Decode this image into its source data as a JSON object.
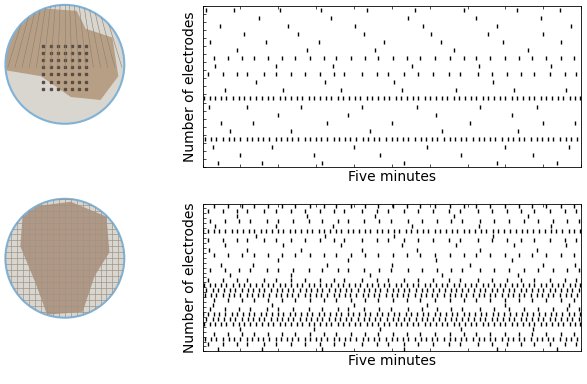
{
  "chart_data": [
    {
      "type": "raster",
      "xlabel": "Five minutes",
      "ylabel": "Number of electrodes",
      "xlim": [
        0,
        300
      ],
      "ylim": [
        0,
        20
      ],
      "xticks": [
        0,
        30,
        60,
        90,
        120,
        150,
        180,
        210,
        240,
        270,
        300
      ],
      "yticks": [
        0,
        1,
        2,
        3,
        4,
        5,
        6,
        7,
        8,
        9,
        10,
        11,
        12,
        13,
        14,
        15,
        16,
        17,
        18,
        19,
        20
      ],
      "tick_labels": false,
      "color": "#000000",
      "marker": "vline",
      "rows": [
        [
          12,
          47,
          95,
          160,
          233,
          281
        ],
        [
          30,
          88,
          141,
          205,
          262
        ],
        [
          8,
          55,
          120,
          178,
          240,
          290
        ],
        [
          2,
          7,
          11,
          16,
          21,
          25,
          30,
          35,
          39,
          44,
          48,
          53,
          58,
          62,
          67,
          71,
          76,
          81,
          85,
          90,
          94,
          99,
          104,
          108,
          113,
          117,
          122,
          127,
          131,
          136,
          140,
          145,
          150,
          154,
          159,
          163,
          168,
          173,
          177,
          182,
          186,
          191,
          196,
          200,
          205,
          209,
          214,
          219,
          223,
          228,
          232,
          237,
          242,
          246,
          251,
          255,
          260,
          265,
          269,
          274,
          278,
          283,
          288,
          292,
          297
        ],
        [
          22,
          70,
          133,
          190,
          250
        ],
        [
          15,
          40,
          99,
          150,
          212,
          270,
          295
        ],
        [
          60,
          115,
          185,
          245
        ],
        [
          5,
          35,
          78,
          126,
          170,
          220,
          265
        ],
        [
          1,
          6,
          10,
          15,
          19,
          24,
          29,
          33,
          38,
          42,
          47,
          52,
          56,
          61,
          65,
          70,
          75,
          79,
          84,
          88,
          93,
          98,
          102,
          107,
          111,
          116,
          121,
          125,
          130,
          134,
          139,
          144,
          148,
          153,
          157,
          162,
          167,
          171,
          176,
          180,
          185,
          190,
          194,
          199,
          203,
          208,
          213,
          217,
          222,
          226,
          231,
          236,
          240,
          245,
          249,
          254,
          259,
          263,
          268,
          272,
          277,
          282,
          286,
          291,
          295,
          299
        ],
        [
          18,
          64,
          110,
          158,
          201,
          247,
          288
        ],
        [
          42,
          97,
          152,
          230
        ],
        [
          4,
          16,
          27,
          35,
          49,
          58,
          70,
          81,
          93,
          104,
          112,
          126,
          138,
          147,
          160,
          171,
          183,
          195,
          204,
          218,
          229,
          241,
          252,
          263,
          275,
          287,
          296
        ],
        [
          10,
          58,
          103,
          166,
          219,
          276
        ],
        [
          9,
          20,
          31,
          41,
          52,
          63,
          73,
          85,
          96,
          106,
          118,
          129,
          139,
          151,
          162,
          172,
          184,
          196,
          207,
          217,
          228,
          240,
          251,
          261,
          272,
          284,
          294
        ],
        [
          27,
          83,
          137,
          199,
          258
        ],
        [
          6,
          50,
          92,
          144,
          189,
          238,
          284
        ],
        [
          33,
          76,
          128,
          181,
          226,
          270
        ],
        [
          14,
          68,
          121,
          175,
          233,
          292
        ],
        [
          45,
          102,
          163,
          217,
          268
        ],
        [
          3,
          25,
          61,
          94,
          130,
          168,
          207,
          249,
          283
        ]
      ]
    },
    {
      "type": "raster",
      "xlabel": "Five minutes",
      "ylabel": "Number of electrodes",
      "xlim": [
        0,
        300
      ],
      "ylim": [
        0,
        30
      ],
      "xticks": [
        0,
        30,
        60,
        90,
        120,
        150,
        180,
        210,
        240,
        270,
        300
      ],
      "yticks": [
        0,
        1,
        2,
        3,
        4,
        5,
        6,
        7,
        8,
        9,
        10,
        11,
        12,
        13,
        14,
        15,
        16,
        17,
        18,
        19,
        20,
        21,
        22,
        23,
        24,
        25,
        26,
        27,
        28,
        29,
        30
      ],
      "tick_labels": false,
      "color": "#000000",
      "marker": "vline",
      "rows": [
        [
          12,
          47,
          95,
          160,
          233,
          281
        ],
        [
          4,
          16,
          27,
          35,
          49,
          58,
          70,
          81,
          93,
          104,
          112,
          126,
          138,
          147,
          160,
          171,
          183,
          195,
          204,
          218,
          229,
          241,
          252,
          263,
          275,
          287,
          296
        ],
        [
          2,
          7,
          11,
          16,
          21,
          25,
          30,
          35,
          39,
          44,
          48,
          53,
          58,
          62,
          67,
          71,
          76,
          81,
          85,
          90,
          94,
          99,
          104,
          108,
          113,
          117,
          122,
          127,
          131,
          136,
          140,
          145,
          150,
          154,
          159,
          163,
          168,
          173,
          177,
          182,
          186,
          191,
          196,
          200,
          205,
          209,
          214,
          219,
          223,
          228,
          232,
          237,
          242,
          246,
          251,
          255,
          260,
          265,
          269,
          274,
          278,
          283,
          288,
          292,
          297
        ],
        [
          9,
          20,
          31,
          41,
          52,
          63,
          73,
          85,
          96,
          106,
          118,
          129,
          139,
          151,
          162,
          172,
          184,
          196,
          207,
          217,
          228,
          240,
          251,
          261,
          272,
          284,
          294
        ],
        [
          30,
          88,
          141,
          205,
          262
        ],
        [
          1,
          6,
          10,
          15,
          19,
          24,
          29,
          33,
          38,
          42,
          47,
          52,
          56,
          61,
          65,
          70,
          75,
          79,
          84,
          88,
          93,
          98,
          102,
          107,
          111,
          116,
          121,
          125,
          130,
          134,
          139,
          144,
          148,
          153,
          157,
          162,
          167,
          171,
          176,
          180,
          185,
          190,
          194,
          199,
          203,
          208,
          213,
          217,
          222,
          226,
          231,
          236,
          240,
          245,
          249,
          254,
          259,
          263,
          268,
          272,
          277,
          282,
          286,
          291,
          295,
          299
        ],
        [
          3,
          8,
          12,
          17,
          22,
          26,
          31,
          36,
          40,
          45,
          49,
          54,
          59,
          63,
          68,
          72,
          77,
          82,
          86,
          91,
          95,
          100,
          105,
          109,
          114,
          118,
          123,
          128,
          132,
          137,
          141,
          146,
          151,
          155,
          160,
          164,
          169,
          174,
          178,
          183,
          187,
          192,
          197,
          201,
          206,
          210,
          215,
          220,
          224,
          229,
          233,
          238,
          243,
          247,
          252,
          256,
          261,
          266,
          270,
          275,
          279,
          284,
          289,
          293,
          298
        ],
        [
          0,
          4,
          9,
          13,
          18,
          23,
          27,
          32,
          37,
          41,
          46,
          50,
          55,
          60,
          64,
          69,
          73,
          78,
          83,
          87,
          92,
          96,
          101,
          106,
          110,
          115,
          119,
          124,
          129,
          133,
          138,
          142,
          147,
          152,
          156,
          161,
          165,
          170,
          175,
          179,
          184,
          188,
          193,
          198,
          202,
          207,
          211,
          216,
          221,
          225,
          230,
          234,
          239,
          244,
          248,
          253,
          257,
          262,
          267,
          271,
          276,
          280,
          285,
          290,
          294,
          299
        ],
        [
          6,
          18,
          29,
          38,
          51,
          60,
          72,
          84,
          95,
          107,
          115,
          128,
          140,
          149,
          163,
          174,
          186,
          197,
          206,
          220,
          231,
          243,
          255,
          266,
          278,
          289,
          298
        ],
        [
          8,
          55,
          120,
          178,
          240,
          290
        ],
        [
          9,
          20,
          31,
          41,
          52,
          63,
          73,
          85,
          96,
          106,
          118,
          129,
          139,
          151,
          162,
          172,
          184,
          196,
          207,
          217,
          228,
          240,
          251,
          261,
          272,
          284,
          294
        ],
        [
          2,
          7,
          11,
          16,
          21,
          25,
          30,
          35,
          39,
          44,
          48,
          53,
          58,
          62,
          67,
          71,
          76,
          81,
          85,
          90,
          94,
          99,
          104,
          108,
          113,
          117,
          122,
          127,
          131,
          136,
          140,
          145,
          150,
          154,
          159,
          163,
          168,
          173,
          177,
          182,
          186,
          191,
          196,
          200,
          205,
          209,
          214,
          219,
          223,
          228,
          232,
          237,
          242,
          246,
          251,
          255,
          260,
          265,
          269,
          274,
          278,
          283,
          288,
          292,
          297
        ],
        [
          3,
          8,
          12,
          17,
          22,
          26,
          31,
          36,
          40,
          45,
          49,
          54,
          59,
          63,
          68,
          72,
          77,
          82,
          86,
          91,
          95,
          100,
          105,
          109,
          114,
          118,
          123,
          128,
          132,
          137,
          141,
          146,
          151,
          155,
          160,
          164,
          169,
          174,
          178,
          183,
          187,
          192,
          197,
          201,
          206,
          210,
          215,
          220,
          224,
          229,
          233,
          238,
          243,
          247,
          252,
          256,
          261,
          266,
          270,
          275,
          279,
          284,
          289,
          293,
          298
        ],
        [
          1,
          6,
          10,
          15,
          19,
          24,
          29,
          33,
          38,
          42,
          47,
          52,
          56,
          61,
          65,
          70,
          75,
          79,
          84,
          88,
          93,
          98,
          102,
          107,
          111,
          116,
          121,
          125,
          130,
          134,
          139,
          144,
          148,
          153,
          157,
          162,
          167,
          171,
          176,
          180,
          185,
          190,
          194,
          199,
          203,
          208,
          213,
          217,
          222,
          226,
          231,
          236,
          240,
          245,
          249,
          254,
          259,
          263,
          268,
          272,
          277,
          282,
          286,
          291,
          295,
          299
        ],
        [
          4,
          16,
          27,
          35,
          49,
          58,
          70,
          81,
          93,
          104,
          112,
          126,
          138,
          147,
          160,
          171,
          183,
          195,
          204,
          218,
          229,
          241,
          252,
          263,
          275,
          287,
          296
        ],
        [
          22,
          70,
          133,
          190,
          250
        ],
        [
          6,
          18,
          29,
          38,
          51,
          60,
          72,
          84,
          95,
          107,
          115,
          128,
          140,
          149,
          163,
          174,
          186,
          197,
          206,
          220,
          231,
          243,
          255,
          266,
          278,
          289,
          298
        ],
        [
          15,
          40,
          99,
          150,
          212,
          270,
          295
        ],
        [
          60,
          115,
          185,
          245
        ],
        [
          9,
          20,
          31,
          41,
          52,
          63,
          73,
          85,
          96,
          106,
          118,
          129,
          139,
          151,
          162,
          172,
          184,
          196,
          207,
          217,
          228,
          240,
          251,
          261,
          272,
          284,
          294
        ],
        [
          5,
          35,
          78,
          126,
          170,
          220,
          265
        ],
        [
          18,
          64,
          110,
          158,
          201,
          247,
          288
        ],
        [
          4,
          16,
          27,
          35,
          49,
          58,
          70,
          81,
          93,
          104,
          112,
          126,
          138,
          147,
          160,
          171,
          183,
          195,
          204,
          218,
          229,
          241,
          252,
          263,
          275,
          287,
          296
        ],
        [
          42,
          97,
          152,
          230
        ],
        [
          0,
          4,
          9,
          13,
          18,
          23,
          27,
          32,
          37,
          41,
          46,
          50,
          55,
          60,
          64,
          69,
          73,
          78,
          83,
          87,
          92,
          96,
          101,
          106,
          110,
          115,
          119,
          124,
          129,
          133,
          138,
          142,
          147,
          152,
          156,
          161,
          165,
          170,
          175,
          179,
          184,
          188,
          193,
          198,
          202,
          207,
          211,
          216,
          221,
          225,
          230,
          234,
          239,
          244,
          248,
          253,
          257,
          262,
          267,
          271,
          276,
          280,
          285,
          290,
          294,
          299
        ],
        [
          10,
          58,
          103,
          166,
          219,
          276
        ],
        [
          6,
          18,
          29,
          38,
          51,
          60,
          72,
          84,
          95,
          107,
          115,
          128,
          140,
          149,
          163,
          174,
          186,
          197,
          206,
          220,
          231,
          243,
          255,
          266,
          278,
          289,
          298
        ],
        [
          27,
          83,
          137,
          199,
          258
        ],
        [
          4,
          16,
          27,
          35,
          49,
          58,
          70,
          81,
          93,
          104,
          112,
          126,
          138,
          147,
          160,
          171,
          183,
          195,
          204,
          218,
          229,
          241,
          252,
          263,
          275,
          287,
          296
        ],
        [
          9,
          20,
          31,
          41,
          52,
          63,
          73,
          85,
          96,
          106,
          118,
          129,
          139,
          151,
          162,
          172,
          184,
          196,
          207,
          217,
          228,
          240,
          251,
          261,
          272,
          284,
          294
        ]
      ]
    }
  ]
}
